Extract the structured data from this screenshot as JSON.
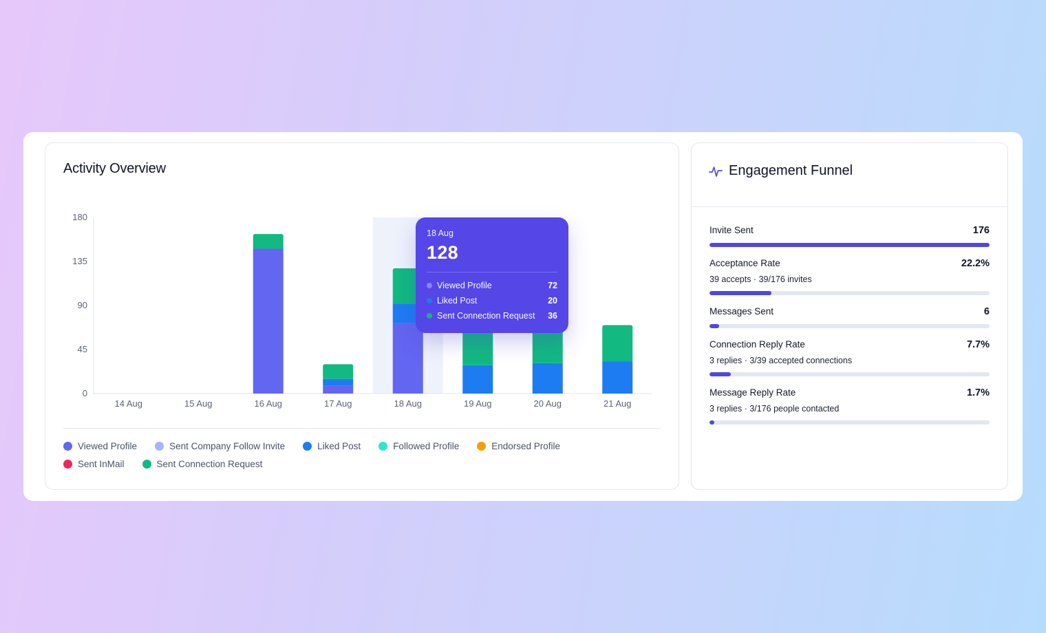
{
  "activity": {
    "title": "Activity Overview"
  },
  "chart_data": {
    "type": "bar",
    "stacked": true,
    "categories": [
      "14 Aug",
      "15 Aug",
      "16 Aug",
      "17 Aug",
      "18 Aug",
      "19 Aug",
      "20 Aug",
      "21 Aug"
    ],
    "series": [
      {
        "name": "Viewed Profile",
        "color": "#6366f1",
        "values": [
          0,
          0,
          148,
          8,
          72,
          0,
          0,
          0
        ]
      },
      {
        "name": "Sent Company Follow Invite",
        "color": "#a5b4fc",
        "values": [
          0,
          0,
          0,
          0,
          0,
          0,
          0,
          0
        ]
      },
      {
        "name": "Liked Post",
        "color": "#1d7cf2",
        "values": [
          0,
          0,
          0,
          7,
          20,
          29,
          31,
          33
        ]
      },
      {
        "name": "Followed Profile",
        "color": "#2ee6cf",
        "values": [
          0,
          0,
          0,
          0,
          0,
          0,
          0,
          0
        ]
      },
      {
        "name": "Endorsed Profile",
        "color": "#f59e0b",
        "values": [
          0,
          0,
          0,
          0,
          0,
          0,
          0,
          0
        ]
      },
      {
        "name": "Sent InMail",
        "color": "#f0245f",
        "values": [
          0,
          0,
          0,
          0,
          0,
          0,
          0,
          0
        ]
      },
      {
        "name": "Sent Connection Request",
        "color": "#12b981",
        "values": [
          0,
          0,
          15,
          15,
          36,
          36,
          37,
          37
        ]
      }
    ],
    "y_ticks": [
      "0",
      "45",
      "90",
      "135",
      "180"
    ],
    "ylim": [
      0,
      180
    ],
    "highlight_index": 4,
    "legend_position": "bottom",
    "grid": false
  },
  "tooltip": {
    "date": "18 Aug",
    "total": "128",
    "rows": [
      {
        "label": "Viewed Profile",
        "value": "72",
        "color": "#8b86f5"
      },
      {
        "label": "Liked Post",
        "value": "20",
        "color": "#1d7cf2"
      },
      {
        "label": "Sent Connection Request",
        "value": "36",
        "color": "#12b981"
      }
    ]
  },
  "funnel": {
    "title": "Engagement Funnel",
    "icon": "pulse-icon",
    "metrics": [
      {
        "label": "Invite Sent",
        "value": "176",
        "sub": "",
        "fill": 1.0
      },
      {
        "label": "Acceptance Rate",
        "value": "22.2%",
        "sub": "39 accepts · 39/176 invites",
        "fill": 0.222
      },
      {
        "label": "Messages Sent",
        "value": "6",
        "sub": "",
        "fill": 0.034
      },
      {
        "label": "Connection Reply Rate",
        "value": "7.7%",
        "sub": "3 replies · 3/39 accepted connections",
        "fill": 0.077
      },
      {
        "label": "Message Reply Rate",
        "value": "1.7%",
        "sub": "3 replies · 3/176 people contacted",
        "fill": 0.017
      }
    ]
  }
}
